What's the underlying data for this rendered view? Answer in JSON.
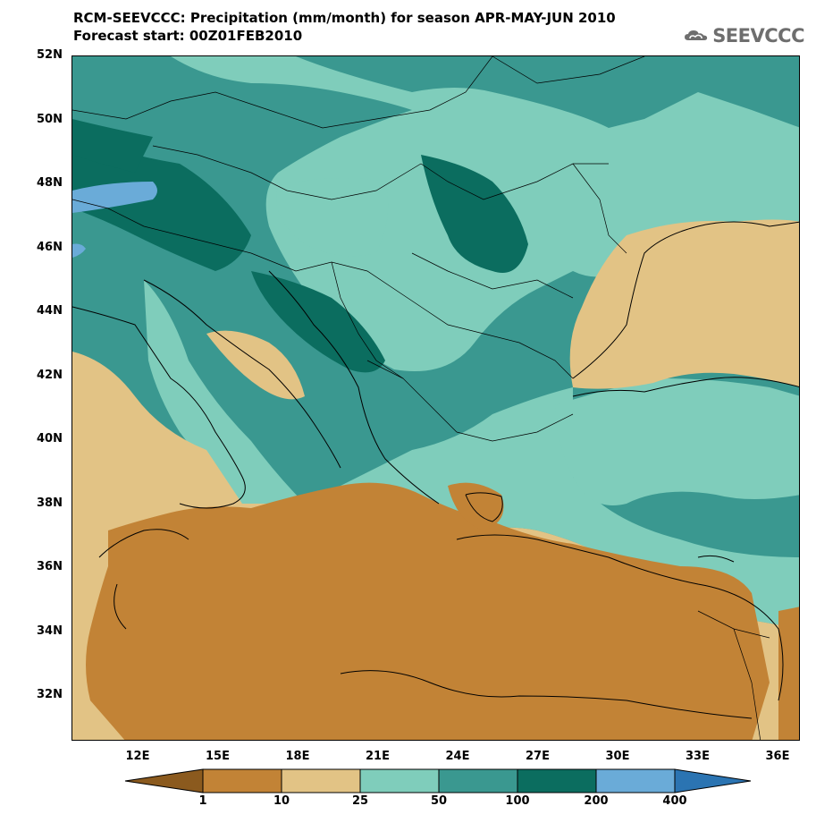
{
  "header": {
    "title": "RCM-SEEVCCC: Precipitation (mm/month) for season APR-MAY-JUN 2010",
    "subtitle": "Forecast start: 00Z01FEB2010"
  },
  "logo": {
    "text": "SEEVCCC",
    "icon": "cloud-logo-icon"
  },
  "map": {
    "lat_labels": [
      "52N",
      "50N",
      "48N",
      "46N",
      "44N",
      "42N",
      "40N",
      "38N",
      "36N",
      "34N",
      "32N"
    ],
    "lon_labels": [
      "12E",
      "15E",
      "18E",
      "21E",
      "24E",
      "27E",
      "30E",
      "33E",
      "36E"
    ]
  },
  "colorbar": {
    "labels": [
      "1",
      "10",
      "25",
      "50",
      "100",
      "200",
      "400"
    ],
    "colors": [
      "#8b5a1e",
      "#c28336",
      "#e2c385",
      "#7fcdbb",
      "#3a9890",
      "#0b6d5f",
      "#6aabd8",
      "#2b74b2"
    ]
  }
}
